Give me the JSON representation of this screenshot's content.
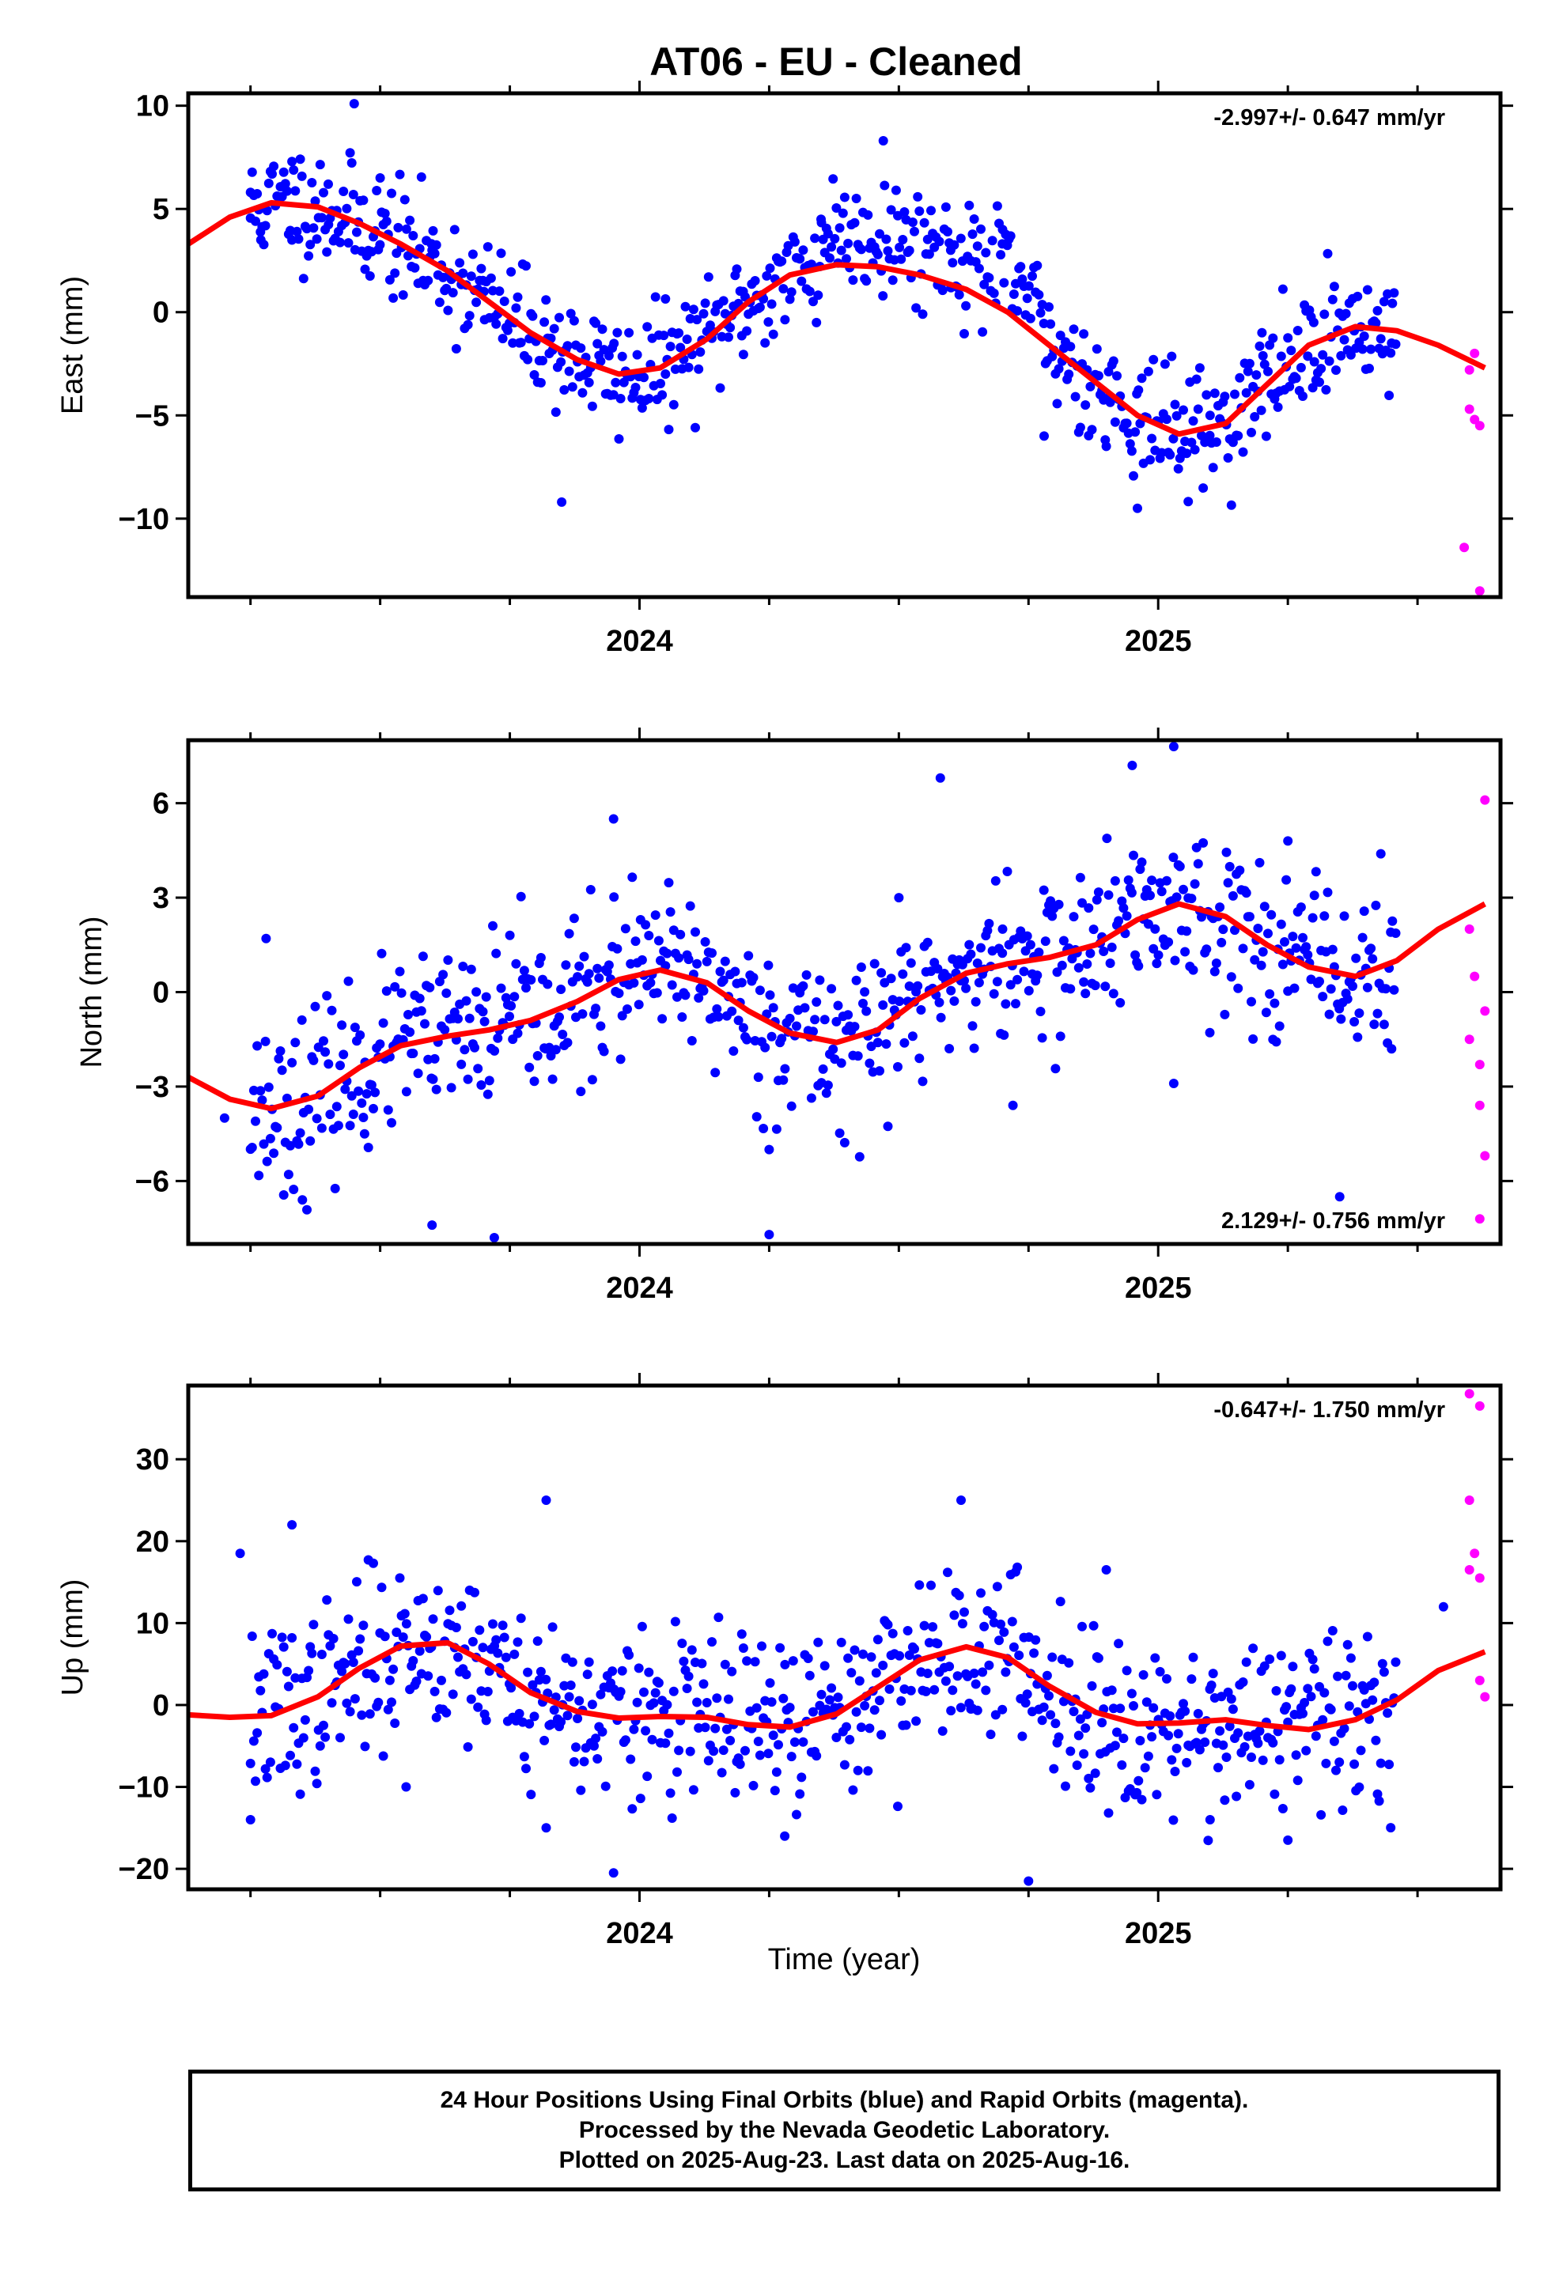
{
  "title": "AT06  - EU - Cleaned",
  "x_axis_label": "Time (year)",
  "footer": {
    "line1": "24 Hour Positions Using Final Orbits (blue) and Rapid Orbits (magenta).",
    "line2": "Processed by the Nevada Geodetic Laboratory.",
    "line3": "Plotted on 2025-Aug-23. Last data on 2025-Aug-16."
  },
  "colors": {
    "final_orbits": "#0000ff",
    "rapid_orbits": "#ff00ff",
    "model": "#ff0000",
    "axes": "#000000"
  },
  "chart_data": [
    {
      "type": "scatter",
      "ylabel": "East (mm)",
      "rate_label": "-2.997+/- 0.647 mm/yr",
      "rate_position": "top-right",
      "xlim": [
        2023.13,
        2025.66
      ],
      "ylim": [
        -13.8,
        10.6
      ],
      "yticks": [
        10,
        5,
        0,
        -5,
        -10
      ],
      "ytick_labels": [
        "10",
        "5",
        "0",
        "−5",
        "−10"
      ],
      "xticks": [
        2024,
        2025
      ],
      "xtick_labels": [
        "2024",
        "2025"
      ],
      "series": [
        {
          "values": [
            [
              2023.25,
              5.8
            ],
            [
              2023.27,
              3.5
            ],
            [
              2023.33,
              7.3
            ],
            [
              2023.4,
              6.2
            ],
            [
              2023.45,
              10.1
            ],
            [
              2023.5,
              6.5
            ],
            [
              2023.6,
              3.0
            ],
            [
              2023.7,
              1.0
            ],
            [
              2023.85,
              -9.2
            ],
            [
              2023.95,
              -4.0
            ],
            [
              2024.05,
              -3.0
            ],
            [
              2024.2,
              1.0
            ],
            [
              2024.35,
              4.5
            ],
            [
              2024.47,
              8.3
            ],
            [
              2024.6,
              3.0
            ],
            [
              2024.7,
              4.0
            ],
            [
              2024.78,
              -6.0
            ],
            [
              2024.9,
              -6.5
            ],
            [
              2024.96,
              -9.5
            ],
            [
              2025.1,
              -5.0
            ],
            [
              2025.2,
              -1.0
            ],
            [
              2025.3,
              -0.5
            ],
            [
              2025.45,
              -1.5
            ]
          ]
        },
        {
          "values": [
            [
              2025.6,
              -2.8
            ],
            [
              2025.6,
              -4.7
            ],
            [
              2025.61,
              -5.2
            ],
            [
              2025.62,
              -5.5
            ],
            [
              2025.59,
              -11.4
            ],
            [
              2025.62,
              -13.5
            ],
            [
              2025.61,
              -2.0
            ]
          ]
        }
      ],
      "model": [
        [
          2023.13,
          3.3
        ],
        [
          2023.21,
          4.6
        ],
        [
          2023.29,
          5.3
        ],
        [
          2023.38,
          5.1
        ],
        [
          2023.46,
          4.3
        ],
        [
          2023.54,
          3.3
        ],
        [
          2023.63,
          2.0
        ],
        [
          2023.71,
          0.5
        ],
        [
          2023.79,
          -1.0
        ],
        [
          2023.88,
          -2.3
        ],
        [
          2023.96,
          -3.0
        ],
        [
          2024.04,
          -2.7
        ],
        [
          2024.13,
          -1.3
        ],
        [
          2024.21,
          0.5
        ],
        [
          2024.29,
          1.8
        ],
        [
          2024.38,
          2.3
        ],
        [
          2024.46,
          2.2
        ],
        [
          2024.54,
          1.8
        ],
        [
          2024.63,
          1.1
        ],
        [
          2024.71,
          0.0
        ],
        [
          2024.79,
          -1.6
        ],
        [
          2024.88,
          -3.4
        ],
        [
          2024.96,
          -5.0
        ],
        [
          2025.04,
          -5.9
        ],
        [
          2025.13,
          -5.4
        ],
        [
          2025.21,
          -3.5
        ],
        [
          2025.29,
          -1.6
        ],
        [
          2025.38,
          -0.7
        ],
        [
          2025.46,
          -0.9
        ],
        [
          2025.54,
          -1.6
        ],
        [
          2025.63,
          -2.7
        ]
      ]
    },
    {
      "type": "scatter",
      "ylabel": "North (mm)",
      "rate_label": "2.129+/- 0.756 mm/yr",
      "rate_position": "bottom-right",
      "xlim": [
        2023.13,
        2025.66
      ],
      "ylim": [
        -8.0,
        8.0
      ],
      "yticks": [
        6,
        3,
        0,
        -3,
        -6
      ],
      "ytick_labels": [
        "6",
        "3",
        "0",
        "−3",
        "−6"
      ],
      "xticks": [
        2024,
        2025
      ],
      "xtick_labels": [
        "2024",
        "2025"
      ],
      "series": [
        {
          "values": [
            [
              2023.2,
              -4.0
            ],
            [
              2023.28,
              1.7
            ],
            [
              2023.35,
              -6.6
            ],
            [
              2023.47,
              -4.5
            ],
            [
              2023.6,
              -7.4
            ],
            [
              2023.75,
              1.8
            ],
            [
              2023.72,
              -7.8
            ],
            [
              2023.95,
              5.5
            ],
            [
              2024.25,
              -5.0
            ],
            [
              2024.25,
              -7.7
            ],
            [
              2024.5,
              3.0
            ],
            [
              2024.58,
              6.8
            ],
            [
              2024.7,
              2.0
            ],
            [
              2024.72,
              -3.6
            ],
            [
              2024.95,
              7.2
            ],
            [
              2025.03,
              7.8
            ],
            [
              2025.03,
              -2.9
            ],
            [
              2025.25,
              4.8
            ],
            [
              2025.35,
              -6.5
            ],
            [
              2025.45,
              -1.8
            ]
          ]
        },
        {
          "values": [
            [
              2025.6,
              2.0
            ],
            [
              2025.61,
              0.5
            ],
            [
              2025.6,
              -1.5
            ],
            [
              2025.62,
              -2.3
            ],
            [
              2025.62,
              -3.6
            ],
            [
              2025.63,
              -5.2
            ],
            [
              2025.62,
              -7.2
            ],
            [
              2025.63,
              6.1
            ],
            [
              2025.63,
              -0.6
            ]
          ]
        }
      ],
      "model": [
        [
          2023.13,
          -2.7
        ],
        [
          2023.21,
          -3.4
        ],
        [
          2023.29,
          -3.7
        ],
        [
          2023.38,
          -3.3
        ],
        [
          2023.46,
          -2.4
        ],
        [
          2023.54,
          -1.7
        ],
        [
          2023.63,
          -1.4
        ],
        [
          2023.71,
          -1.2
        ],
        [
          2023.79,
          -0.9
        ],
        [
          2023.88,
          -0.3
        ],
        [
          2023.96,
          0.4
        ],
        [
          2024.04,
          0.7
        ],
        [
          2024.13,
          0.3
        ],
        [
          2024.21,
          -0.6
        ],
        [
          2024.29,
          -1.3
        ],
        [
          2024.38,
          -1.6
        ],
        [
          2024.46,
          -1.2
        ],
        [
          2024.54,
          -0.2
        ],
        [
          2024.63,
          0.6
        ],
        [
          2024.71,
          0.9
        ],
        [
          2024.79,
          1.1
        ],
        [
          2024.88,
          1.5
        ],
        [
          2024.96,
          2.3
        ],
        [
          2025.04,
          2.8
        ],
        [
          2025.13,
          2.4
        ],
        [
          2025.21,
          1.5
        ],
        [
          2025.29,
          0.8
        ],
        [
          2025.38,
          0.5
        ],
        [
          2025.46,
          1.0
        ],
        [
          2025.54,
          2.0
        ],
        [
          2025.63,
          2.8
        ]
      ]
    },
    {
      "type": "scatter",
      "ylabel": "Up (mm)",
      "rate_label": "-0.647+/- 1.750 mm/yr",
      "rate_position": "top-right",
      "xlim": [
        2023.13,
        2025.66
      ],
      "ylim": [
        -22.5,
        39.0
      ],
      "yticks": [
        30,
        20,
        10,
        0,
        -10,
        -20
      ],
      "ytick_labels": [
        "30",
        "20",
        "10",
        "0",
        "−10",
        "−20"
      ],
      "xticks": [
        2024,
        2025
      ],
      "xtick_labels": [
        "2024",
        "2025"
      ],
      "series": [
        {
          "values": [
            [
              2023.23,
              18.5
            ],
            [
              2023.25,
              -14.0
            ],
            [
              2023.33,
              22.0
            ],
            [
              2023.55,
              -10.0
            ],
            [
              2023.82,
              25.0
            ],
            [
              2023.82,
              -15.0
            ],
            [
              2023.95,
              -20.5
            ],
            [
              2024.28,
              -16.0
            ],
            [
              2024.62,
              25.0
            ],
            [
              2024.75,
              -21.5
            ],
            [
              2024.9,
              16.5
            ],
            [
              2025.1,
              -14.0
            ],
            [
              2025.25,
              -16.5
            ],
            [
              2025.55,
              12.0
            ]
          ]
        },
        {
          "values": [
            [
              2025.6,
              38.0
            ],
            [
              2025.62,
              36.5
            ],
            [
              2025.6,
              25.0
            ],
            [
              2025.61,
              18.5
            ],
            [
              2025.6,
              16.5
            ],
            [
              2025.62,
              15.5
            ],
            [
              2025.62,
              3.0
            ],
            [
              2025.63,
              1.0
            ]
          ]
        }
      ],
      "model": [
        [
          2023.13,
          -1.2
        ],
        [
          2023.21,
          -1.5
        ],
        [
          2023.29,
          -1.3
        ],
        [
          2023.38,
          1.0
        ],
        [
          2023.46,
          4.5
        ],
        [
          2023.54,
          7.2
        ],
        [
          2023.63,
          7.6
        ],
        [
          2023.71,
          5.0
        ],
        [
          2023.79,
          1.5
        ],
        [
          2023.88,
          -0.8
        ],
        [
          2023.96,
          -1.6
        ],
        [
          2024.04,
          -1.4
        ],
        [
          2024.13,
          -1.5
        ],
        [
          2024.21,
          -2.4
        ],
        [
          2024.29,
          -2.7
        ],
        [
          2024.38,
          -1.1
        ],
        [
          2024.46,
          2.2
        ],
        [
          2024.54,
          5.5
        ],
        [
          2024.63,
          7.1
        ],
        [
          2024.71,
          5.8
        ],
        [
          2024.79,
          2.3
        ],
        [
          2024.88,
          -0.9
        ],
        [
          2024.96,
          -2.3
        ],
        [
          2025.04,
          -2.2
        ],
        [
          2025.13,
          -1.8
        ],
        [
          2025.21,
          -2.5
        ],
        [
          2025.29,
          -3.0
        ],
        [
          2025.38,
          -1.8
        ],
        [
          2025.46,
          0.6
        ],
        [
          2025.54,
          4.2
        ],
        [
          2025.63,
          6.5
        ]
      ]
    }
  ]
}
